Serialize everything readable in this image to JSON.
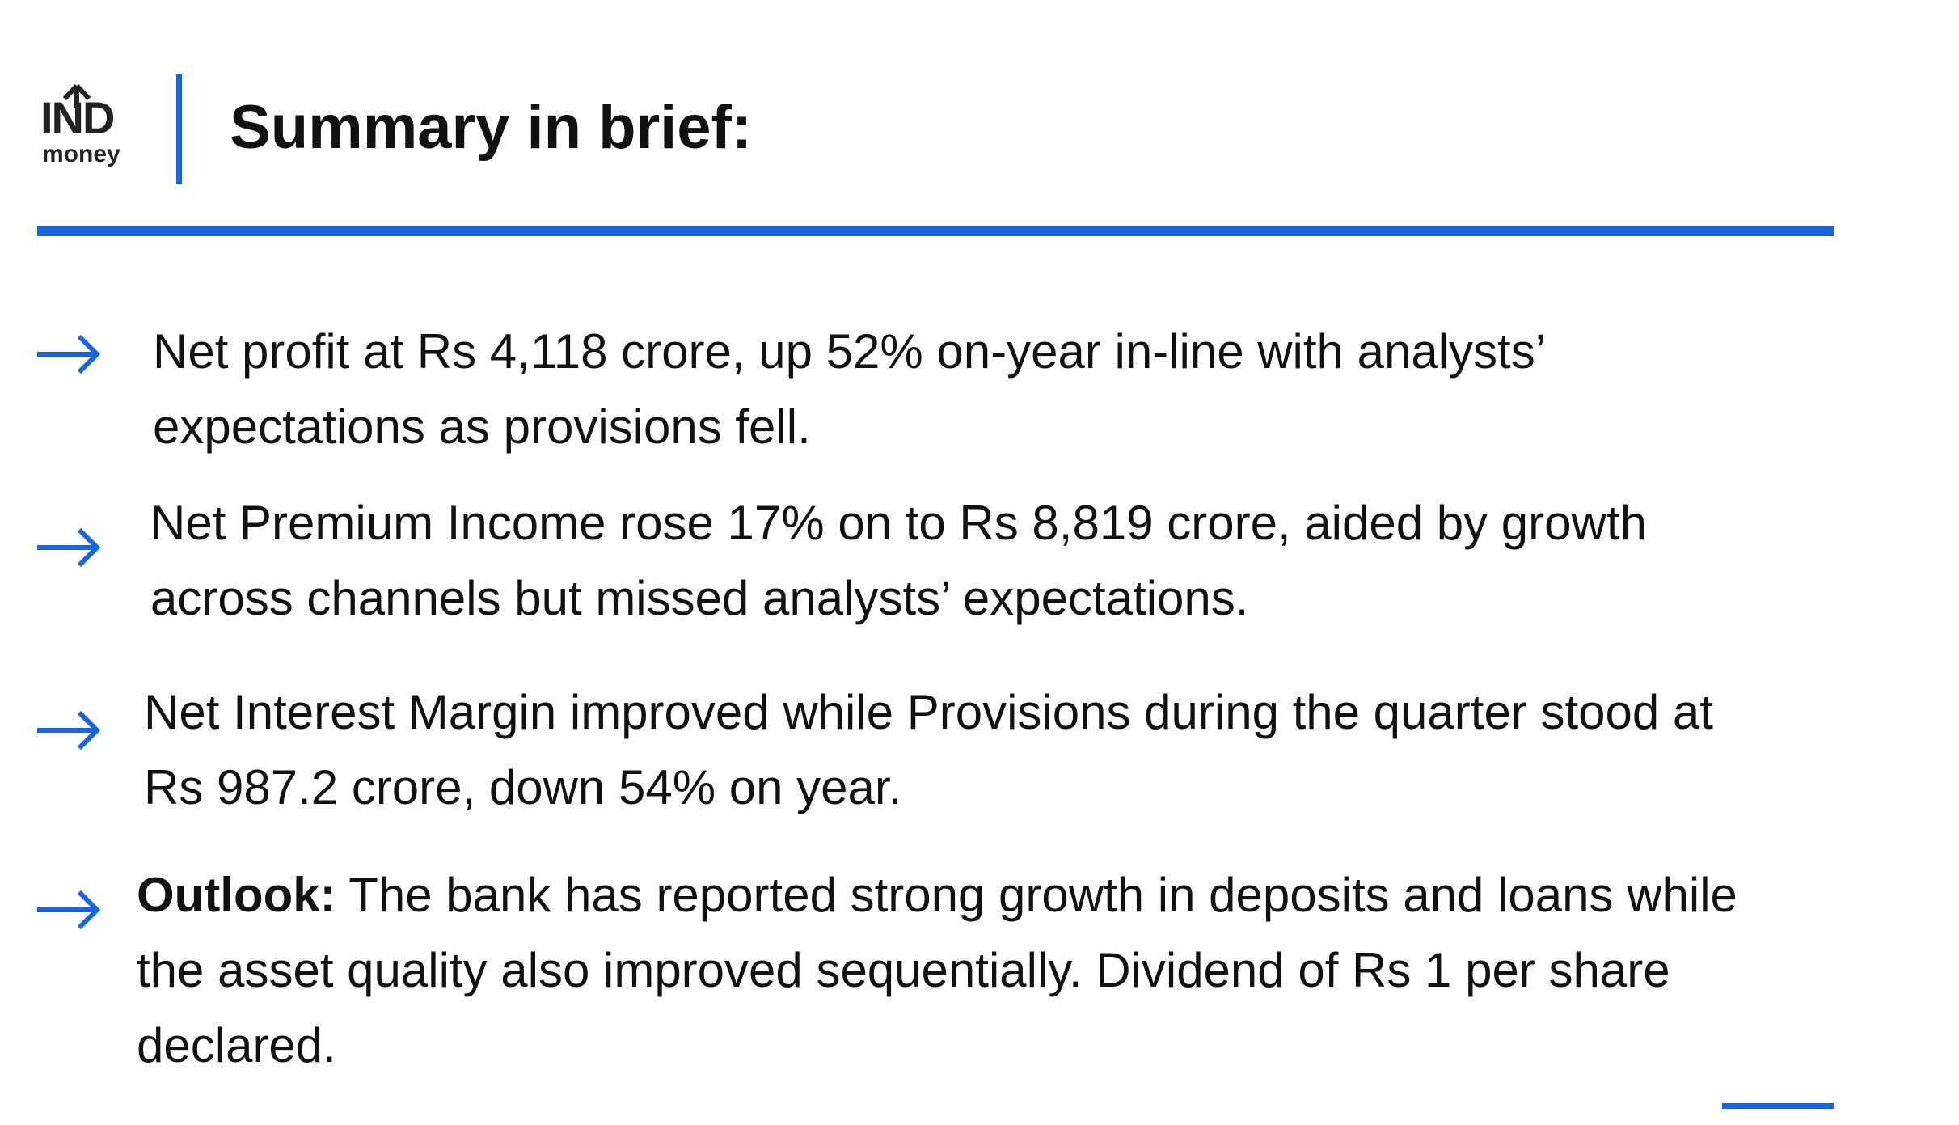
{
  "header": {
    "logo": {
      "top": "IND",
      "bottom": "money"
    },
    "title": "Summary in brief:"
  },
  "items": [
    {
      "lines": [
        "Net profit at Rs 4,118 crore, up 52% on-year in-line with analysts’",
        "expectations as provisions fell."
      ]
    },
    {
      "lines": [
        "Net Premium Income rose 17% on to Rs 8,819 crore, aided by growth",
        "across channels but missed analysts’ expectations."
      ]
    },
    {
      "lines": [
        "Net Interest Margin improved while Provisions during the quarter stood at",
        "Rs 987.2 crore, down 54% on year."
      ]
    },
    {
      "label": "Outlook:",
      "lines": [
        " The bank has reported strong growth in deposits and loans while",
        "the asset quality also improved sequentially. Dividend of Rs 1 per share",
        "declared."
      ]
    }
  ]
}
